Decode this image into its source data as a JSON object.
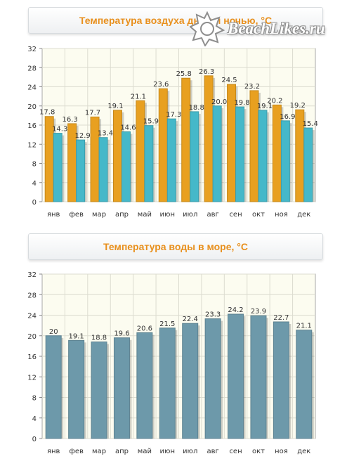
{
  "air": {
    "title": "Температура воздуха днем и ночью, °C",
    "chart_data": {
      "type": "bar",
      "title": "Температура воздуха днем и ночью, °C",
      "categories": [
        "янв",
        "фев",
        "мар",
        "апр",
        "май",
        "июн",
        "июл",
        "авг",
        "сен",
        "окт",
        "ноя",
        "дек"
      ],
      "series": [
        {
          "values": [
            17.8,
            16.3,
            17.7,
            19.1,
            21.1,
            23.6,
            25.8,
            26.3,
            24.5,
            23.2,
            20.2,
            19.2
          ],
          "color": "#e8a020"
        },
        {
          "values": [
            14.3,
            12.9,
            13.4,
            14.6,
            15.9,
            17.3,
            18.8,
            20.0,
            19.8,
            19.1,
            16.9,
            15.4
          ],
          "color": "#45b8c9"
        }
      ],
      "value_labels": [
        [
          "17.8",
          "16.3",
          "17.7",
          "19.1",
          "21.1",
          "23.6",
          "25.8",
          "26.3",
          "24.5",
          "23.2",
          "20.2",
          "19.2"
        ],
        [
          "14.3",
          "12.9",
          "13.4",
          "14.6",
          "15.9",
          "17.3",
          "18.8",
          "20.0",
          "19.8",
          "19.1",
          "16.9",
          "15.4"
        ]
      ],
      "yticks": [
        0,
        4,
        8,
        12,
        16,
        20,
        24,
        28,
        32
      ],
      "ylim": [
        0,
        32
      ],
      "grid": true,
      "background": "#fcfcf0"
    }
  },
  "sea": {
    "title": "Температура воды в море, °C",
    "chart_data": {
      "type": "bar",
      "title": "Температура воды в море, °C",
      "categories": [
        "янв",
        "фев",
        "мар",
        "апр",
        "май",
        "июн",
        "июл",
        "авг",
        "сен",
        "окт",
        "ноя",
        "дек"
      ],
      "series": [
        {
          "values": [
            20,
            19.1,
            18.8,
            19.6,
            20.6,
            21.5,
            22.4,
            23.3,
            24.2,
            23.9,
            22.7,
            21.1
          ],
          "color": "#6d99aa"
        }
      ],
      "value_labels": [
        [
          "20",
          "19.1",
          "18.8",
          "19.6",
          "20.6",
          "21.5",
          "22.4",
          "23.3",
          "24.2",
          "23.9",
          "22.7",
          "21.1"
        ]
      ],
      "yticks": [
        0,
        4,
        8,
        12,
        16,
        20,
        24,
        28,
        32
      ],
      "ylim": [
        0,
        32
      ],
      "grid": true,
      "background": "#fcfcf0"
    }
  },
  "watermark": {
    "text": "BeachLikes.ru",
    "icon": "sun-logo-icon"
  }
}
